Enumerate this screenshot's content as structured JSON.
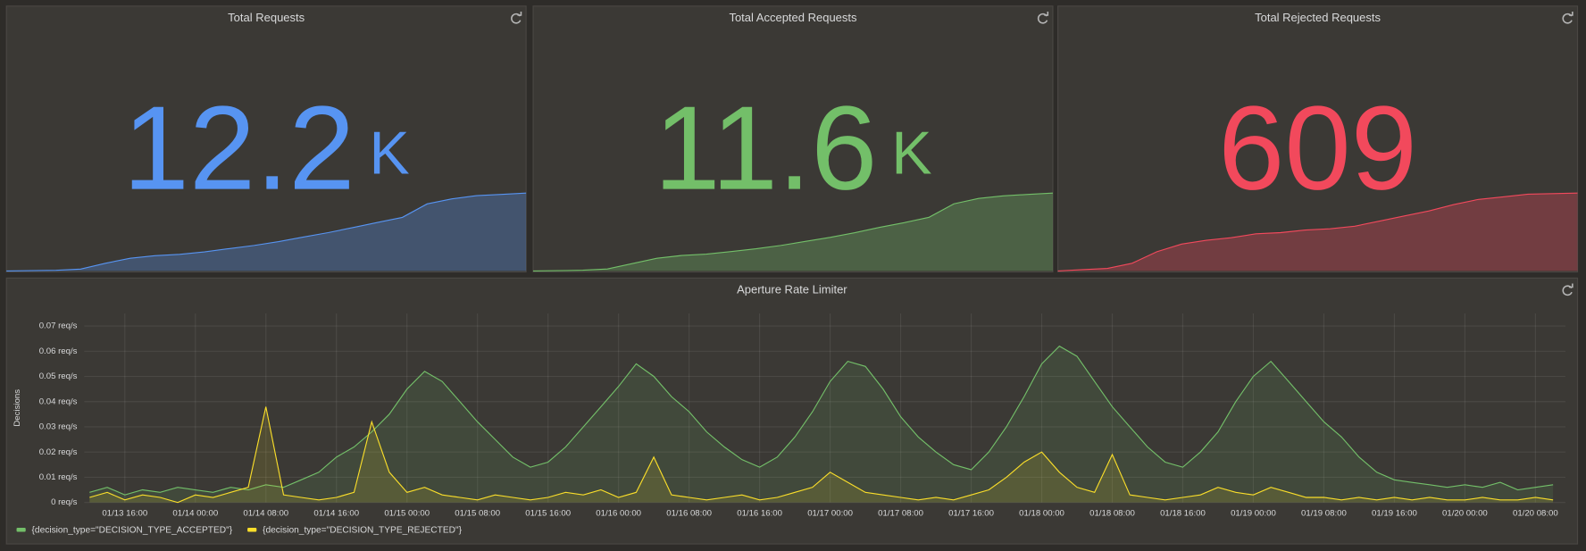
{
  "chart_data": [
    {
      "type": "stat",
      "title": "Total Requests",
      "value": 12.2,
      "unit": "K",
      "color": "#5794f2",
      "sparkline": [
        0,
        0.05,
        0.1,
        0.3,
        1.2,
        2.0,
        2.4,
        2.6,
        3.0,
        3.5,
        4.0,
        4.6,
        5.3,
        6.0,
        6.8,
        7.6,
        8.4,
        10.5,
        11.3,
        11.8,
        12.0,
        12.2
      ]
    },
    {
      "type": "stat",
      "title": "Total Accepted Requests",
      "value": 11.6,
      "unit": "K",
      "color": "#73bf69",
      "sparkline": [
        0,
        0.05,
        0.1,
        0.3,
        1.1,
        1.9,
        2.3,
        2.5,
        2.9,
        3.3,
        3.8,
        4.4,
        5.0,
        5.7,
        6.5,
        7.2,
        8.0,
        10.0,
        10.8,
        11.2,
        11.4,
        11.6
      ]
    },
    {
      "type": "stat",
      "title": "Total Rejected Requests",
      "value": 609,
      "color": "#f2495c",
      "sparkline": [
        0,
        10,
        20,
        60,
        150,
        210,
        240,
        260,
        290,
        300,
        320,
        330,
        350,
        390,
        430,
        470,
        520,
        560,
        580,
        600,
        605,
        609
      ]
    },
    {
      "type": "line",
      "title": "Aperture Rate Limiter",
      "ylabel": "Decisions",
      "x": [
        "01/13 12:00",
        "01/13 14:00",
        "01/13 16:00",
        "01/13 18:00",
        "01/13 20:00",
        "01/13 22:00",
        "01/14 00:00",
        "01/14 02:00",
        "01/14 04:00",
        "01/14 06:00",
        "01/14 08:00",
        "01/14 10:00",
        "01/14 12:00",
        "01/14 14:00",
        "01/14 16:00",
        "01/14 18:00",
        "01/14 20:00",
        "01/14 22:00",
        "01/15 00:00",
        "01/15 02:00",
        "01/15 04:00",
        "01/15 06:00",
        "01/15 08:00",
        "01/15 10:00",
        "01/15 12:00",
        "01/15 14:00",
        "01/15 16:00",
        "01/15 18:00",
        "01/15 20:00",
        "01/15 22:00",
        "01/16 00:00",
        "01/16 02:00",
        "01/16 04:00",
        "01/16 06:00",
        "01/16 08:00",
        "01/16 10:00",
        "01/16 12:00",
        "01/16 14:00",
        "01/16 16:00",
        "01/16 18:00",
        "01/16 20:00",
        "01/16 22:00",
        "01/17 00:00",
        "01/17 02:00",
        "01/17 04:00",
        "01/17 06:00",
        "01/17 08:00",
        "01/17 10:00",
        "01/17 12:00",
        "01/17 14:00",
        "01/17 16:00",
        "01/17 18:00",
        "01/17 20:00",
        "01/17 22:00",
        "01/18 00:00",
        "01/18 02:00",
        "01/18 04:00",
        "01/18 06:00",
        "01/18 08:00",
        "01/18 10:00",
        "01/18 12:00",
        "01/18 14:00",
        "01/18 16:00",
        "01/18 18:00",
        "01/18 20:00",
        "01/18 22:00",
        "01/19 00:00",
        "01/19 02:00",
        "01/19 04:00",
        "01/19 06:00",
        "01/19 08:00",
        "01/19 10:00",
        "01/19 12:00",
        "01/19 14:00",
        "01/19 16:00",
        "01/19 18:00",
        "01/19 20:00",
        "01/19 22:00",
        "01/20 00:00",
        "01/20 02:00",
        "01/20 04:00",
        "01/20 06:00",
        "01/20 08:00",
        "01/20 10:00"
      ],
      "xticks": [
        "01/13 16:00",
        "01/14 00:00",
        "01/14 08:00",
        "01/14 16:00",
        "01/15 00:00",
        "01/15 08:00",
        "01/15 16:00",
        "01/16 00:00",
        "01/16 08:00",
        "01/16 16:00",
        "01/17 00:00",
        "01/17 08:00",
        "01/17 16:00",
        "01/18 00:00",
        "01/18 08:00",
        "01/18 16:00",
        "01/19 00:00",
        "01/19 08:00",
        "01/19 16:00",
        "01/20 00:00",
        "01/20 08:00"
      ],
      "ylim": [
        0,
        0.075
      ],
      "yticks": [
        {
          "value": 0,
          "label": "0 req/s"
        },
        {
          "value": 0.01,
          "label": "0.01 req/s"
        },
        {
          "value": 0.02,
          "label": "0.02 req/s"
        },
        {
          "value": 0.03,
          "label": "0.03 req/s"
        },
        {
          "value": 0.04,
          "label": "0.04 req/s"
        },
        {
          "value": 0.05,
          "label": "0.05 req/s"
        },
        {
          "value": 0.06,
          "label": "0.06 req/s"
        },
        {
          "value": 0.07,
          "label": "0.07 req/s"
        }
      ],
      "grid": true,
      "series": [
        {
          "name": "{decision_type=\"DECISION_TYPE_ACCEPTED\"}",
          "color": "#73bf69",
          "values": [
            0.004,
            0.006,
            0.003,
            0.005,
            0.004,
            0.006,
            0.005,
            0.004,
            0.006,
            0.005,
            0.007,
            0.006,
            0.009,
            0.012,
            0.018,
            0.022,
            0.028,
            0.035,
            0.045,
            0.052,
            0.048,
            0.04,
            0.032,
            0.025,
            0.018,
            0.014,
            0.016,
            0.022,
            0.03,
            0.038,
            0.046,
            0.055,
            0.05,
            0.042,
            0.036,
            0.028,
            0.022,
            0.017,
            0.014,
            0.018,
            0.026,
            0.036,
            0.048,
            0.056,
            0.054,
            0.045,
            0.034,
            0.026,
            0.02,
            0.015,
            0.013,
            0.02,
            0.03,
            0.042,
            0.055,
            0.062,
            0.058,
            0.048,
            0.038,
            0.03,
            0.022,
            0.016,
            0.014,
            0.02,
            0.028,
            0.04,
            0.05,
            0.056,
            0.048,
            0.04,
            0.032,
            0.026,
            0.018,
            0.012,
            0.009,
            0.008,
            0.007,
            0.006,
            0.007,
            0.006,
            0.008,
            0.005,
            0.006,
            0.007
          ]
        },
        {
          "name": "{decision_type=\"DECISION_TYPE_REJECTED\"}",
          "color": "#fade2a",
          "values": [
            0.002,
            0.004,
            0.001,
            0.003,
            0.002,
            0,
            0.003,
            0.002,
            0.004,
            0.006,
            0.038,
            0.003,
            0.002,
            0.001,
            0.002,
            0.004,
            0.032,
            0.012,
            0.004,
            0.006,
            0.003,
            0.002,
            0.001,
            0.003,
            0.002,
            0.001,
            0.002,
            0.004,
            0.003,
            0.005,
            0.002,
            0.004,
            0.018,
            0.003,
            0.002,
            0.001,
            0.002,
            0.003,
            0.001,
            0.002,
            0.004,
            0.006,
            0.012,
            0.008,
            0.004,
            0.003,
            0.002,
            0.001,
            0.002,
            0.001,
            0.003,
            0.005,
            0.01,
            0.016,
            0.02,
            0.012,
            0.006,
            0.004,
            0.019,
            0.003,
            0.002,
            0.001,
            0.002,
            0.003,
            0.006,
            0.004,
            0.003,
            0.006,
            0.004,
            0.002,
            0.002,
            0.001,
            0.002,
            0.001,
            0.002,
            0.001,
            0.002,
            0.001,
            0.001,
            0.002,
            0.001,
            0.001,
            0.002,
            0.001
          ]
        }
      ]
    }
  ]
}
